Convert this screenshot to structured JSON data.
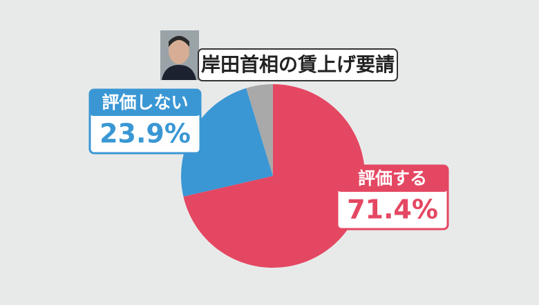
{
  "chart_data": {
    "type": "pie",
    "title": "岸田首相の賃上げ要請",
    "categories": [
      "評価する",
      "評価しない",
      null
    ],
    "values": [
      71.4,
      23.9,
      4.7
    ],
    "value_labels": [
      "71.4%",
      "23.9%",
      null
    ],
    "colors": [
      "#e44762",
      "#3a97d4",
      "#a9a9a9"
    ]
  }
}
